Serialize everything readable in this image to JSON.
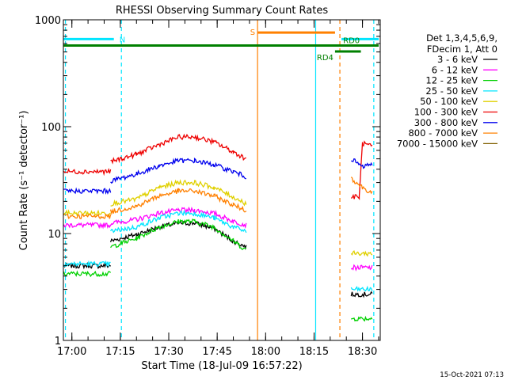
{
  "chart_data": {
    "type": "line",
    "title": "RHESSI Observing Summary Count Rates",
    "xlabel": "Start Time (18-Jul-09 16:57:22)",
    "ylabel": "Count Rate (s⁻¹ detector⁻¹)",
    "yscale": "log",
    "ylim": [
      1,
      1000
    ],
    "xlim_minutes": [
      "16:57:22",
      "18:35:30"
    ],
    "grid": false,
    "x_ticks": [
      {
        "t": "17:00",
        "label": "17:00"
      },
      {
        "t": "17:15",
        "label": "17:15"
      },
      {
        "t": "17:30",
        "label": "17:30"
      },
      {
        "t": "17:45",
        "label": "17:45"
      },
      {
        "t": "18:00",
        "label": "18:00"
      },
      {
        "t": "18:15",
        "label": "18:15"
      },
      {
        "t": "18:30",
        "label": "18:30"
      }
    ],
    "y_ticks": [
      {
        "v": 1,
        "label": "1"
      },
      {
        "v": 10,
        "label": "10"
      },
      {
        "v": 100,
        "label": "100"
      },
      {
        "v": 1000,
        "label": "1000"
      }
    ],
    "legend": {
      "position": "right",
      "header": [
        "Det 1,3,4,5,6,9,",
        "FDecim 1, Att 0"
      ]
    },
    "series": [
      {
        "name": "3 - 6 keV",
        "color": "#000000",
        "segments": [
          {
            "x": [
              "16:57:30",
              "17:12:00"
            ],
            "y": [
              5,
              5
            ]
          },
          {
            "x": [
              "17:12:00",
              "17:20:00",
              "17:27:00",
              "17:33:00",
              "17:38:00",
              "17:44:00",
              "17:50:00",
              "17:54:00"
            ],
            "y": [
              8.5,
              9.8,
              11.5,
              12.5,
              12.5,
              11.2,
              8.5,
              7.5
            ]
          },
          {
            "x": [
              "18:26:30",
              "18:33:00"
            ],
            "y": [
              2.7,
              2.7
            ]
          }
        ]
      },
      {
        "name": "6 - 12 keV",
        "color": "#ff00ff",
        "segments": [
          {
            "x": [
              "16:57:30",
              "17:12:00"
            ],
            "y": [
              12,
              12
            ]
          },
          {
            "x": [
              "17:12:00",
              "17:20:00",
              "17:27:00",
              "17:33:00",
              "17:38:00",
              "17:44:00",
              "17:50:00",
              "17:54:00"
            ],
            "y": [
              12.5,
              13.5,
              15.5,
              16.5,
              16.5,
              15.5,
              13,
              12
            ]
          },
          {
            "x": [
              "18:26:30",
              "18:33:00"
            ],
            "y": [
              4.8,
              4.8
            ]
          }
        ]
      },
      {
        "name": "12 - 25 keV",
        "color": "#00d000",
        "segments": [
          {
            "x": [
              "16:57:30",
              "17:12:00"
            ],
            "y": [
              4.2,
              4.2
            ]
          },
          {
            "x": [
              "17:12:00",
              "17:20:00",
              "17:27:00",
              "17:33:00",
              "17:38:00",
              "17:44:00",
              "17:50:00",
              "17:54:00"
            ],
            "y": [
              7.5,
              9,
              11.5,
              13,
              13,
              11.5,
              8.5,
              7
            ]
          },
          {
            "x": [
              "18:26:30",
              "18:33:00"
            ],
            "y": [
              1.6,
              1.6
            ]
          }
        ]
      },
      {
        "name": "25 - 50 keV",
        "color": "#00e5ff",
        "segments": [
          {
            "x": [
              "16:57:30",
              "17:12:00"
            ],
            "y": [
              5.2,
              5.2
            ]
          },
          {
            "x": [
              "17:12:00",
              "17:20:00",
              "17:27:00",
              "17:33:00",
              "17:38:00",
              "17:44:00",
              "17:50:00",
              "17:54:00"
            ],
            "y": [
              10.5,
              11.5,
              14,
              15.5,
              15.5,
              14,
              11.5,
              10.5
            ]
          },
          {
            "x": [
              "18:26:30",
              "18:33:00"
            ],
            "y": [
              3.0,
              3.0
            ]
          }
        ]
      },
      {
        "name": "50 - 100 keV",
        "color": "#e0d000",
        "segments": [
          {
            "x": [
              "16:57:30",
              "17:12:00"
            ],
            "y": [
              15.5,
              15.5
            ]
          },
          {
            "x": [
              "17:12:00",
              "17:20:00",
              "17:27:00",
              "17:33:00",
              "17:38:00",
              "17:44:00",
              "17:50:00",
              "17:54:00"
            ],
            "y": [
              19,
              21,
              27,
              30,
              30,
              27,
              22,
              19
            ]
          },
          {
            "x": [
              "18:26:30",
              "18:33:00"
            ],
            "y": [
              6.5,
              6.5
            ]
          }
        ]
      },
      {
        "name": "100 - 300 keV",
        "color": "#ee0000",
        "segments": [
          {
            "x": [
              "16:57:30",
              "17:12:00"
            ],
            "y": [
              38,
              38
            ]
          },
          {
            "x": [
              "17:12:00",
              "17:20:00",
              "17:27:00",
              "17:33:00",
              "17:38:00",
              "17:44:00",
              "17:50:00",
              "17:54:00"
            ],
            "y": [
              47,
              55,
              68,
              80,
              80,
              72,
              58,
              50
            ]
          },
          {
            "x": [
              "18:26:30",
              "18:29:00",
              "18:30:00",
              "18:33:00"
            ],
            "y": [
              22,
              22,
              70,
              65
            ]
          }
        ]
      },
      {
        "name": "300 - 800 keV",
        "color": "#0000ee",
        "segments": [
          {
            "x": [
              "16:57:30",
              "17:12:00"
            ],
            "y": [
              25,
              25
            ]
          },
          {
            "x": [
              "17:12:00",
              "17:20:00",
              "17:27:00",
              "17:33:00",
              "17:38:00",
              "17:44:00",
              "17:50:00",
              "17:54:00"
            ],
            "y": [
              31,
              36,
              43,
              48,
              48,
              44,
              38,
              34
            ]
          },
          {
            "x": [
              "18:26:30",
              "18:30:00",
              "18:33:00"
            ],
            "y": [
              50,
              42,
              45
            ]
          }
        ]
      },
      {
        "name": "800 - 7000 keV",
        "color": "#ff8000",
        "segments": [
          {
            "x": [
              "16:57:30",
              "17:12:00"
            ],
            "y": [
              14.5,
              14.5
            ]
          },
          {
            "x": [
              "17:12:00",
              "17:20:00",
              "17:27:00",
              "17:33:00",
              "17:38:00",
              "17:44:00",
              "17:50:00",
              "17:54:00"
            ],
            "y": [
              16,
              18,
              22.5,
              25,
              25,
              22.5,
              18.5,
              16.5
            ]
          },
          {
            "x": [
              "18:26:30",
              "18:30:00",
              "18:33:00"
            ],
            "y": [
              33,
              27,
              24
            ]
          }
        ]
      },
      {
        "name": "7000 - 15000 keV",
        "color": "#806000",
        "segments": []
      }
    ],
    "status_bars": [
      {
        "label": "N",
        "color": "#00e5ff",
        "y": 660,
        "segments": [
          [
            "16:57:30",
            "17:13:00"
          ],
          [
            "18:23:30",
            "18:35:00"
          ]
        ]
      },
      {
        "label": "S",
        "color": "#ff8000",
        "y": 760,
        "segments": [
          [
            "17:57:30",
            "18:21:30"
          ]
        ]
      },
      {
        "label": "RD0",
        "color": "#008000",
        "y": 575,
        "segments": [
          [
            "16:57:30",
            "18:35:00"
          ]
        ]
      },
      {
        "label": "RD4",
        "color": "#008000",
        "y": 505,
        "segments": [
          [
            "18:21:30",
            "18:29:30"
          ]
        ]
      }
    ],
    "vlines": [
      {
        "t": "16:58:00",
        "color": "#00e5ff",
        "style": "dashed"
      },
      {
        "t": "17:15:20",
        "color": "#00e5ff",
        "style": "dashed"
      },
      {
        "t": "17:57:30",
        "color": "#ff8000",
        "style": "solid"
      },
      {
        "t": "18:15:30",
        "color": "#00e5ff",
        "style": "solid"
      },
      {
        "t": "18:23:00",
        "color": "#ff8000",
        "style": "dashed"
      },
      {
        "t": "18:33:30",
        "color": "#00e5ff",
        "style": "dashed"
      }
    ],
    "footer_stamp": "15-Oct-2021 07:13"
  }
}
